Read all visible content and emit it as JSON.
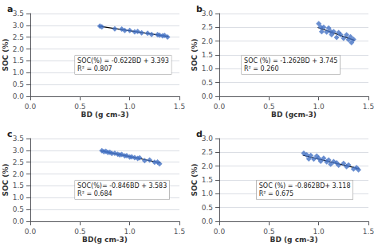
{
  "chart_data": [
    {
      "type": "scatter",
      "title": "a",
      "annotations": [
        "SOC(%) = -0.622BD + 3.393",
        "R² = 0.807"
      ],
      "xlabel": "BD (g cm-3)",
      "ylabel": "SOC (%)",
      "xlim": [
        0,
        1.5
      ],
      "ylim": [
        0,
        3.5
      ],
      "xticks": [
        {
          "value": 0,
          "label": "0.0"
        },
        0.5,
        {
          "value": 1,
          "label": "1.0"
        },
        1.5
      ],
      "yticks": [
        {
          "value": 0,
          "label": "0.0"
        },
        0.5,
        {
          "value": 1,
          "label": "1.0"
        },
        1.5,
        {
          "value": 2,
          "label": "2.0"
        },
        2.5,
        {
          "value": 3,
          "label": "3.0"
        },
        3.5
      ],
      "grid": "y",
      "series": [
        {
          "type": "scatter",
          "color": "#4472C4",
          "marker": "diamond",
          "x": [
            0.7,
            0.72,
            0.85,
            0.92,
            0.95,
            1.0,
            1.05,
            1.08,
            1.12,
            1.18,
            1.22,
            1.28,
            1.3,
            1.33,
            1.35,
            1.38
          ],
          "values": [
            2.9676,
            2.93516,
            2.8543,
            2.84076,
            2.7821,
            2.781,
            2.7299,
            2.74124,
            2.68636,
            2.66904,
            2.61416,
            2.60684,
            2.5844,
            2.55574,
            2.5733,
            2.50464
          ]
        },
        {
          "type": "line",
          "color": "black",
          "line_style": "solid",
          "x": [
            0.69,
            1.39
          ],
          "values": [
            2.96382,
            2.52842
          ]
        }
      ]
    },
    {
      "type": "scatter",
      "title": "b",
      "annotations": [
        "SOC (%) = -1.262BD + 3.745",
        "R² = 0.260"
      ],
      "xlabel": "BD (gcm-3)",
      "ylabel": "SOC (%)",
      "xlim": [
        0,
        1.5
      ],
      "ylim": [
        0,
        3
      ],
      "xticks": [
        {
          "value": 0,
          "label": "0.0"
        },
        0.5,
        {
          "value": 1,
          "label": "1.0"
        },
        1.5
      ],
      "yticks": [
        {
          "value": 0,
          "label": "0.0"
        },
        0.5,
        {
          "value": 1,
          "label": "1.0"
        },
        1.5,
        {
          "value": 2,
          "label": "2.0"
        },
        2.5,
        {
          "value": 3,
          "label": "3.0"
        }
      ],
      "grid": "y",
      "series": [
        {
          "type": "scatter",
          "color": "#4472C4",
          "marker": "diamond",
          "x": [
            1.0,
            1.02,
            1.03,
            1.05,
            1.08,
            1.1,
            1.12,
            1.13,
            1.15,
            1.18,
            1.2,
            1.22,
            1.25,
            1.28,
            1.3,
            1.32,
            1.33,
            1.35
          ],
          "values": [
            2.633,
            2.50776,
            2.34514,
            2.4999,
            2.33204,
            2.4768,
            2.35156,
            2.23894,
            2.3437,
            2.13584,
            2.3106,
            2.23536,
            2.1075,
            2.22964,
            2.0544,
            2.15916,
            1.94654,
            2.0613
          ]
        },
        {
          "type": "line",
          "color": "black",
          "line_style": "solid",
          "x": [
            0.99,
            1.36
          ],
          "values": [
            2.49562,
            2.02868
          ]
        }
      ]
    },
    {
      "type": "scatter",
      "title": "c",
      "annotations": [
        "SOC(%)= -0.846BD + 3.583",
        "R² = 0.684"
      ],
      "xlabel": "BD(g cm-3)",
      "ylabel": "SOC (%)",
      "xlim": [
        0,
        1.5
      ],
      "ylim": [
        0,
        3.5
      ],
      "xticks": [
        {
          "value": 0,
          "label": "0.0"
        },
        0.5,
        {
          "value": 1,
          "label": "1.0"
        },
        1.5
      ],
      "yticks": [
        {
          "value": 0,
          "label": "0.0"
        },
        0.5,
        {
          "value": 1,
          "label": "1.0"
        },
        1.5,
        {
          "value": 2,
          "label": "2.0"
        },
        2.5,
        {
          "value": 3,
          "label": "3.0"
        },
        3.5
      ],
      "grid": "y",
      "series": [
        {
          "type": "scatter",
          "color": "#4472C4",
          "marker": "diamond",
          "x": [
            0.72,
            0.74,
            0.76,
            0.78,
            0.8,
            0.82,
            0.85,
            0.88,
            0.9,
            0.92,
            0.95,
            0.97,
            1.0,
            1.02,
            1.05,
            1.08,
            1.1,
            1.15,
            1.2,
            1.25,
            1.28,
            1.3
          ],
          "values": [
            2.98388,
            2.94696,
            2.96004,
            2.91312,
            2.9162,
            2.86928,
            2.8739,
            2.83852,
            2.8116,
            2.82468,
            2.7693,
            2.77238,
            2.717,
            2.73008,
            2.6947,
            2.65932,
            2.6824,
            2.5701,
            2.5878,
            2.4955,
            2.51012,
            2.4332
          ]
        },
        {
          "type": "line",
          "color": "black",
          "line_style": "solid",
          "x": [
            0.71,
            1.31
          ],
          "values": [
            2.98234,
            2.47474
          ]
        }
      ]
    },
    {
      "type": "scatter",
      "title": "d",
      "annotations": [
        "SOC (%) = -0.862BD+ 3.118",
        "R² = 0.675"
      ],
      "xlabel": "BD (g cm-3)",
      "ylabel": "SOC (%)",
      "xlim": [
        0,
        1.5
      ],
      "ylim": [
        0,
        3
      ],
      "xticks": [
        {
          "value": 0,
          "label": "0.0"
        },
        0.5,
        {
          "value": 1,
          "label": "1.0"
        },
        1.5
      ],
      "yticks": [
        {
          "value": 0,
          "label": "0.0"
        },
        0.5,
        {
          "value": 1,
          "label": "1.0"
        },
        1.5,
        {
          "value": 2,
          "label": "2.0"
        },
        2.5,
        {
          "value": 3,
          "label": "3.0"
        }
      ],
      "grid": "y",
      "series": [
        {
          "type": "scatter",
          "color": "#4472C4",
          "marker": "diamond",
          "x": [
            0.85,
            0.88,
            0.9,
            0.92,
            0.95,
            0.98,
            1.0,
            1.02,
            1.05,
            1.08,
            1.1,
            1.12,
            1.15,
            1.18,
            1.2,
            1.25,
            1.28,
            1.3,
            1.35,
            1.38,
            1.4
          ],
          "values": [
            2.4653,
            2.40944,
            2.2622,
            2.38496,
            2.2591,
            2.36324,
            2.286,
            2.17876,
            2.2829,
            2.15704,
            2.2198,
            2.07256,
            2.1667,
            2.12084,
            2.0336,
            2.1005,
            1.98464,
            2.0374,
            1.8943,
            1.94844,
            1.8712
          ]
        },
        {
          "type": "line",
          "color": "black",
          "line_style": "solid",
          "x": [
            0.84,
            1.41
          ],
          "values": [
            2.39392,
            1.90258
          ]
        }
      ]
    }
  ]
}
